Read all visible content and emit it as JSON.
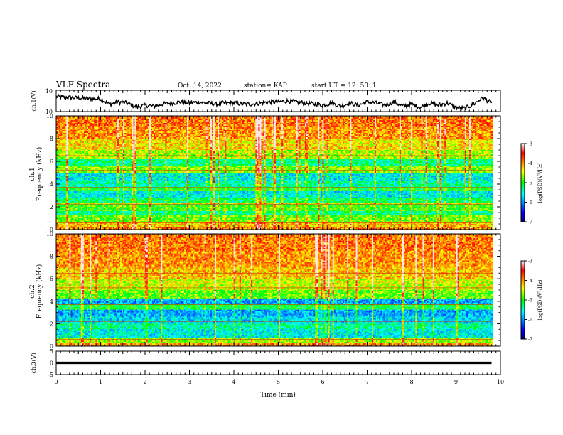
{
  "header": {
    "title": "VLF Spectra",
    "date": "Oct. 14, 2022",
    "station": "station= KAP",
    "start_ut": "start UT =   12: 50: 1"
  },
  "chart_data": [
    {
      "panel": "ch1-waveform",
      "type": "line",
      "ylabel": "ch.1(V)",
      "ylim": [
        -10,
        10
      ],
      "yticks": [
        "10",
        "-10"
      ],
      "xlim": [
        0,
        10
      ],
      "series": [
        {
          "x": [
            0,
            0.2,
            0.4,
            0.6,
            0.8,
            1.0,
            1.2,
            1.4,
            1.6,
            1.8,
            2.0,
            2.2,
            2.4,
            2.6,
            2.8,
            3.0,
            3.2,
            3.4,
            3.6,
            3.8,
            4.0,
            4.2,
            4.4,
            4.6,
            4.8,
            5.0,
            5.2,
            5.4,
            5.6,
            5.8,
            6.0,
            6.2,
            6.4,
            6.6,
            6.8,
            7.0,
            7.2,
            7.4,
            7.6,
            7.8,
            8.0,
            8.2,
            8.4,
            8.6,
            8.8,
            9.0,
            9.2,
            9.4,
            9.6,
            9.8
          ],
          "y": [
            4,
            3.5,
            3,
            2.5,
            2,
            2,
            -3,
            -1,
            -2,
            -6,
            -4,
            -5,
            -3,
            -2,
            -1,
            -2,
            -1,
            -2,
            -3,
            -2,
            -2,
            -3,
            -3,
            -2,
            -1,
            -1,
            0,
            -1,
            -2,
            -3,
            -4,
            -2,
            -5,
            -2,
            -4,
            -1,
            -2,
            -4,
            -1,
            -5,
            -3,
            -6,
            -2,
            -4,
            -2,
            -6,
            -7,
            -3,
            3,
            -2
          ]
        }
      ]
    },
    {
      "panel": "ch1-spectrogram",
      "type": "heatmap",
      "ylabel": "ch.1\nFrequency (kHz)",
      "ylabel_lines": [
        "ch.1",
        "Frequency (kHz)"
      ],
      "ylim": [
        0,
        10
      ],
      "yticks": [
        "0",
        "2",
        "4",
        "6",
        "8",
        "10"
      ],
      "xlim": [
        0,
        10
      ],
      "colorbar": {
        "label": "log(PSD)(V²/Hz)",
        "range": [
          -7,
          -3
        ],
        "ticks": [
          "-3",
          "-4",
          "-5",
          "-6",
          "-7"
        ]
      },
      "band_levels": [
        {
          "f": [
            0.0,
            0.3
          ],
          "level": -4.0
        },
        {
          "f": [
            0.3,
            0.6
          ],
          "level": -4.2
        },
        {
          "f": [
            0.6,
            1.2
          ],
          "level": -4.8
        },
        {
          "f": [
            1.2,
            1.6
          ],
          "level": -5.3
        },
        {
          "f": [
            1.6,
            2.2
          ],
          "level": -4.9
        },
        {
          "f": [
            2.2,
            2.4
          ],
          "level": -4.3
        },
        {
          "f": [
            2.4,
            2.8
          ],
          "level": -5.2
        },
        {
          "f": [
            2.8,
            3.4
          ],
          "level": -5.6
        },
        {
          "f": [
            3.4,
            3.8
          ],
          "level": -5.0
        },
        {
          "f": [
            3.8,
            4.2
          ],
          "level": -5.4
        },
        {
          "f": [
            4.2,
            5.0
          ],
          "level": -5.6
        },
        {
          "f": [
            5.0,
            5.6
          ],
          "level": -4.7
        },
        {
          "f": [
            5.6,
            6.3
          ],
          "level": -5.3
        },
        {
          "f": [
            6.3,
            7.0
          ],
          "level": -4.6
        },
        {
          "f": [
            7.0,
            8.0
          ],
          "level": -4.3
        },
        {
          "f": [
            8.0,
            9.0
          ],
          "level": -4.0
        },
        {
          "f": [
            9.0,
            10.0
          ],
          "level": -3.9
        }
      ]
    },
    {
      "panel": "ch2-spectrogram",
      "type": "heatmap",
      "ylabel": "ch.2\nFrequency (kHz)",
      "ylabel_lines": [
        "ch.2",
        "Frequency (kHz)"
      ],
      "ylim": [
        0,
        10
      ],
      "yticks": [
        "0",
        "2",
        "4",
        "6",
        "8",
        "10"
      ],
      "xlim": [
        0,
        10
      ],
      "colorbar": {
        "label": "log(PSD)(V²/Hz)",
        "range": [
          -7,
          -3
        ],
        "ticks": [
          "-3",
          "-4",
          "-5",
          "-6",
          "-7"
        ]
      },
      "band_levels": [
        {
          "f": [
            0.0,
            0.3
          ],
          "level": -4.0
        },
        {
          "f": [
            0.3,
            0.8
          ],
          "level": -4.6
        },
        {
          "f": [
            0.8,
            1.5
          ],
          "level": -5.6
        },
        {
          "f": [
            1.5,
            2.0
          ],
          "level": -5.4
        },
        {
          "f": [
            2.0,
            2.6
          ],
          "level": -5.7
        },
        {
          "f": [
            2.6,
            3.3
          ],
          "level": -5.9
        },
        {
          "f": [
            3.3,
            3.7
          ],
          "level": -5.1
        },
        {
          "f": [
            3.7,
            4.2
          ],
          "level": -5.9
        },
        {
          "f": [
            4.2,
            5.0
          ],
          "level": -4.8
        },
        {
          "f": [
            5.0,
            6.0
          ],
          "level": -4.5
        },
        {
          "f": [
            6.0,
            7.0
          ],
          "level": -4.2
        },
        {
          "f": [
            7.0,
            8.5
          ],
          "level": -4.0
        },
        {
          "f": [
            8.5,
            10.0
          ],
          "level": -3.9
        }
      ]
    },
    {
      "panel": "ch3-waveform",
      "type": "line",
      "ylabel": "ch.3(V)",
      "ylim": [
        -5,
        5
      ],
      "yticks": [
        "5",
        "0",
        "-5"
      ],
      "xlim": [
        0,
        10
      ],
      "xlabel": "Time (min)",
      "xticks": [
        "0",
        "1",
        "2",
        "3",
        "4",
        "5",
        "6",
        "7",
        "8",
        "9",
        "10"
      ],
      "series": [
        {
          "x": [
            0,
            9.8
          ],
          "y": [
            0,
            0
          ],
          "band": [
            -0.5,
            0.5
          ]
        }
      ]
    }
  ]
}
